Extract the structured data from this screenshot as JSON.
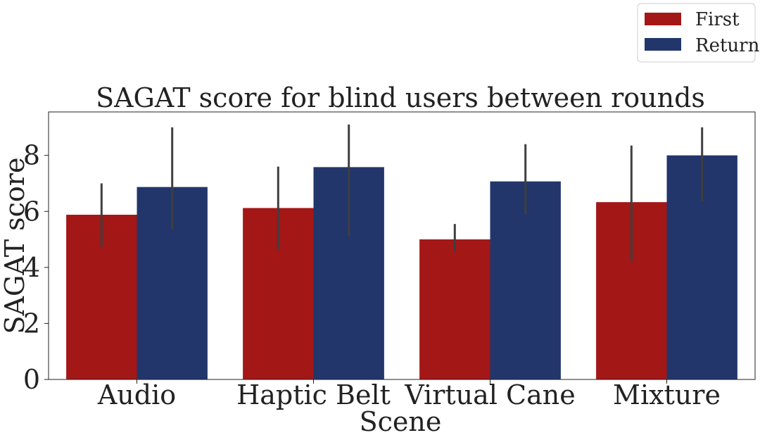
{
  "chart_data": {
    "type": "bar",
    "title": "SAGAT score for blind users between rounds",
    "xlabel": "Scene",
    "ylabel": "SAGAT score",
    "categories": [
      "Audio",
      "Haptic Belt",
      "Virtual Cane",
      "Mixture"
    ],
    "series": [
      {
        "name": "First",
        "color": "#a31717",
        "values": [
          5.88,
          6.12,
          5.0,
          6.33
        ],
        "error_low": [
          4.75,
          4.62,
          4.55,
          4.22
        ],
        "error_high": [
          7.0,
          7.6,
          5.55,
          8.35
        ]
      },
      {
        "name": "Return",
        "color": "#22366b",
        "values": [
          6.87,
          7.58,
          7.07,
          8.0
        ],
        "error_low": [
          5.35,
          5.1,
          5.9,
          6.35
        ],
        "error_high": [
          9.0,
          9.1,
          8.4,
          9.0
        ]
      }
    ],
    "ylim": [
      0,
      9.55
    ],
    "yticks": [
      0,
      2,
      4,
      6,
      8
    ],
    "error_bar_color": "#3f3f3f",
    "grid": false,
    "legend_position": "top-right, outside plot"
  }
}
